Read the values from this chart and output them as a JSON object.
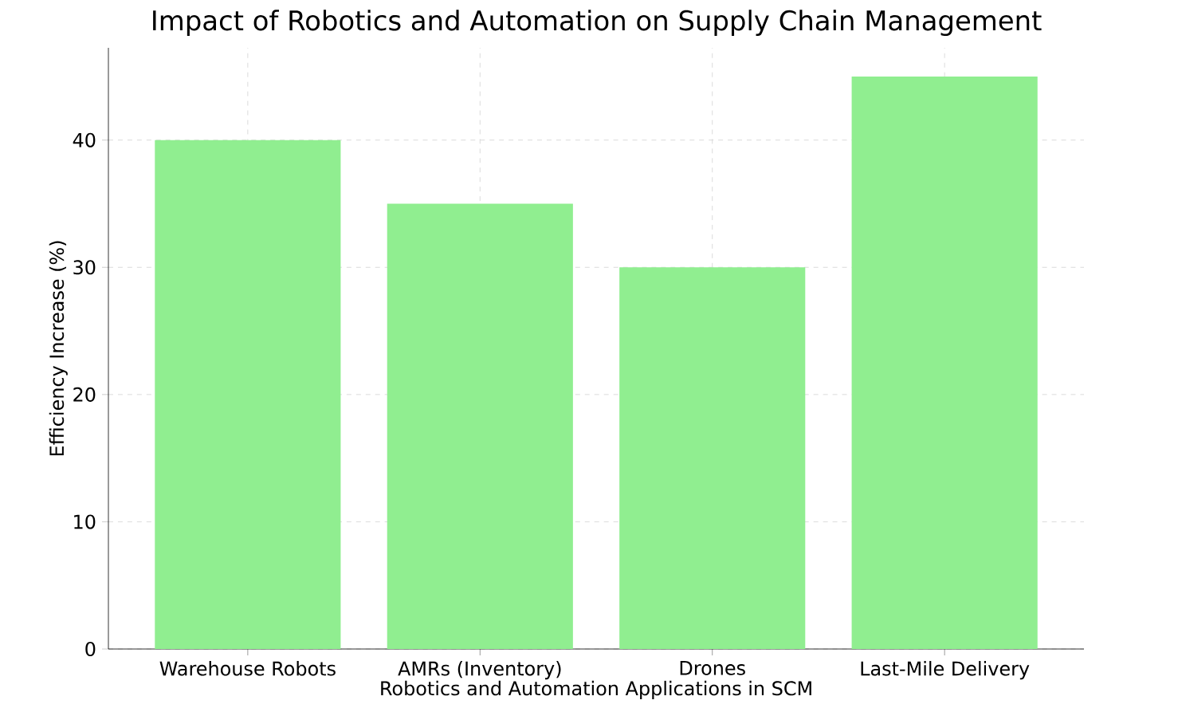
{
  "chart_data": {
    "type": "bar",
    "title": "Impact of Robotics and Automation on Supply Chain Management",
    "xlabel": "Robotics and Automation Applications in SCM",
    "ylabel": "Efficiency Increase (%)",
    "categories": [
      "Warehouse Robots",
      "AMRs (Inventory)",
      "Drones",
      "Last-Mile Delivery"
    ],
    "values": [
      40,
      35,
      30,
      45
    ],
    "color": "#90ee90",
    "ylim": [
      0,
      47.25
    ],
    "yticks": [
      0,
      10,
      20,
      30,
      40
    ],
    "grid": true
  }
}
